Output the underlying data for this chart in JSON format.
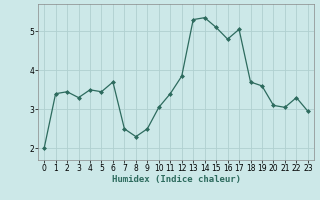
{
  "x": [
    0,
    1,
    2,
    3,
    4,
    5,
    6,
    7,
    8,
    9,
    10,
    11,
    12,
    13,
    14,
    15,
    16,
    17,
    18,
    19,
    20,
    21,
    22,
    23
  ],
  "y": [
    2.0,
    3.4,
    3.45,
    3.3,
    3.5,
    3.45,
    3.7,
    2.5,
    2.3,
    2.5,
    3.05,
    3.4,
    3.85,
    5.3,
    5.35,
    5.1,
    4.8,
    5.05,
    3.7,
    3.6,
    3.1,
    3.05,
    3.3,
    2.95
  ],
  "line_color": "#2d6b5e",
  "marker": "D",
  "marker_size": 2.0,
  "bg_color": "#cce8e8",
  "grid_color": "#b0d0d0",
  "xlabel": "Humidex (Indice chaleur)",
  "xlim": [
    -0.5,
    23.5
  ],
  "ylim": [
    1.7,
    5.7
  ],
  "yticks": [
    2,
    3,
    4,
    5
  ],
  "xticks": [
    0,
    1,
    2,
    3,
    4,
    5,
    6,
    7,
    8,
    9,
    10,
    11,
    12,
    13,
    14,
    15,
    16,
    17,
    18,
    19,
    20,
    21,
    22,
    23
  ],
  "xlabel_fontsize": 6.5,
  "tick_fontsize": 5.5,
  "linewidth": 0.9
}
